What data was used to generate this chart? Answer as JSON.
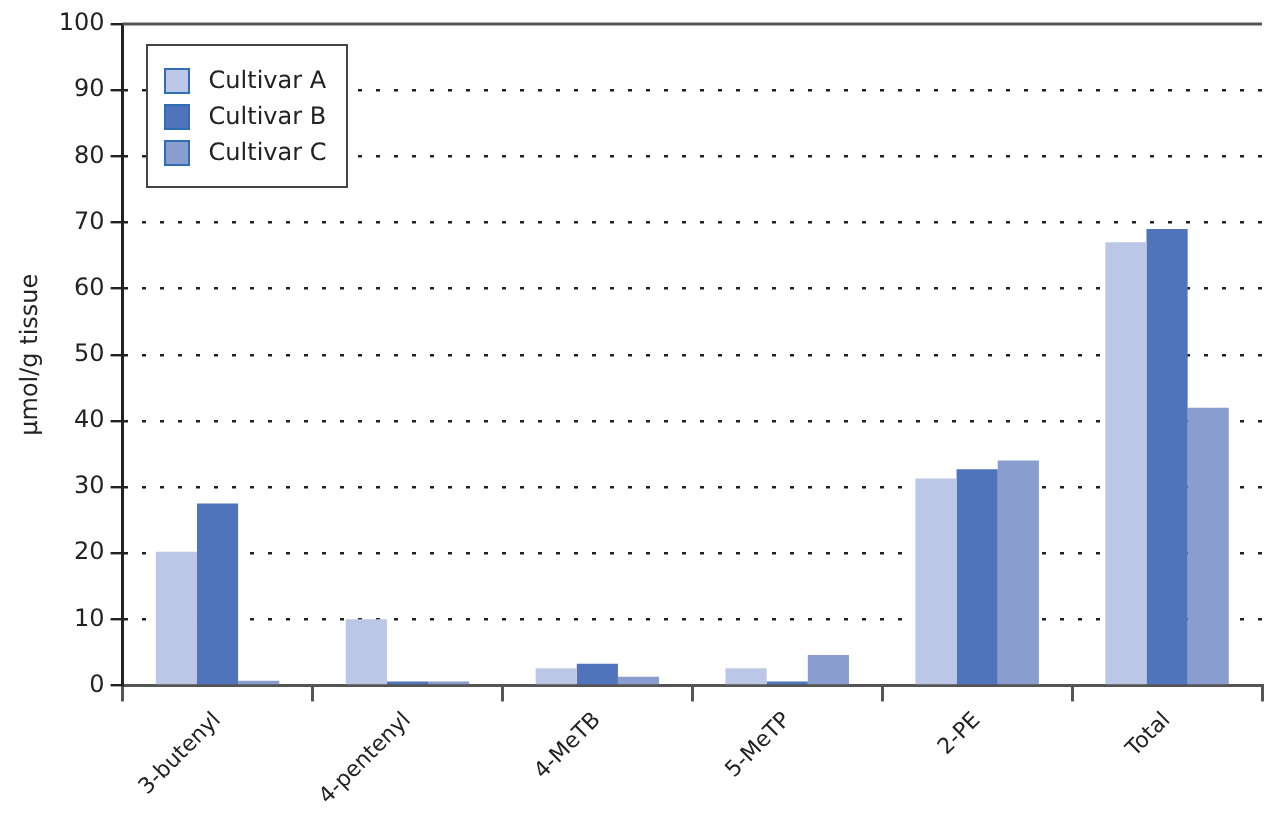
{
  "chart_data": {
    "type": "bar",
    "ylabel": "µmol/g tissue",
    "categories": [
      "3-butenyl",
      "4-pentenyl",
      "4-MeTB",
      "5-MeTP",
      "2-PE",
      "Total"
    ],
    "series": [
      {
        "name": "Cultivar A",
        "color": "#bcc6e6",
        "values": [
          20.2,
          10,
          2.6,
          2.6,
          31.3,
          67
        ]
      },
      {
        "name": "Cultivar B",
        "color": "#4f74bb",
        "values": [
          27.5,
          0.6,
          3.3,
          0.6,
          32.7,
          69
        ]
      },
      {
        "name": "Cultivar C",
        "color": "#8a9dcf",
        "values": [
          0.7,
          0.6,
          1.3,
          4.6,
          34,
          42
        ]
      }
    ],
    "ylim": [
      0,
      100
    ],
    "yticks": [
      0,
      10,
      20,
      30,
      40,
      50,
      60,
      70,
      80,
      90,
      100
    ],
    "grid": "y",
    "legend": "top left"
  }
}
